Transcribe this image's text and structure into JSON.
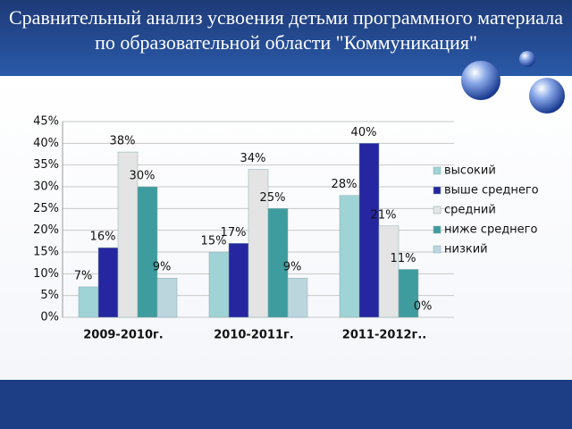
{
  "chart_data": {
    "type": "bar",
    "title": "Сравнительный анализ усвоения детьми программного материала по образовательной области \"Коммуникация\"",
    "categories": [
      "2009-2010г.",
      "2010-2011г.",
      "2011-2012г.."
    ],
    "series": [
      {
        "name": "высокий",
        "color": "#9fd3d6",
        "values": [
          7,
          15,
          28
        ],
        "value_labels": [
          "7%",
          "15%",
          "28%"
        ]
      },
      {
        "name": "выше среднего",
        "color": "#2626a0",
        "values": [
          16,
          17,
          40
        ],
        "value_labels": [
          "16%",
          "17%",
          "40%"
        ]
      },
      {
        "name": "средний",
        "color": "#e4e4e4",
        "values": [
          38,
          34,
          21
        ],
        "value_labels": [
          "38%",
          "34%",
          "21%"
        ]
      },
      {
        "name": "ниже среднего",
        "color": "#3f9c9e",
        "values": [
          30,
          25,
          11
        ],
        "value_labels": [
          "30%",
          "25%",
          "11%"
        ]
      },
      {
        "name": "низкий",
        "color": "#bcd6de",
        "values": [
          9,
          9,
          0
        ],
        "value_labels": [
          "9%",
          "9%",
          "0%"
        ]
      }
    ],
    "ylim": [
      0,
      45
    ],
    "yticks": [
      {
        "value": 0,
        "label": "0%"
      },
      {
        "value": 5,
        "label": "5%"
      },
      {
        "value": 10,
        "label": "10%"
      },
      {
        "value": 15,
        "label": "15%"
      },
      {
        "value": 20,
        "label": "20%"
      },
      {
        "value": 25,
        "label": "25%"
      },
      {
        "value": 30,
        "label": "30%"
      },
      {
        "value": 35,
        "label": "35%"
      },
      {
        "value": 40,
        "label": "40%"
      },
      {
        "value": 45,
        "label": "45%"
      }
    ],
    "grid": true,
    "legend": "right"
  }
}
